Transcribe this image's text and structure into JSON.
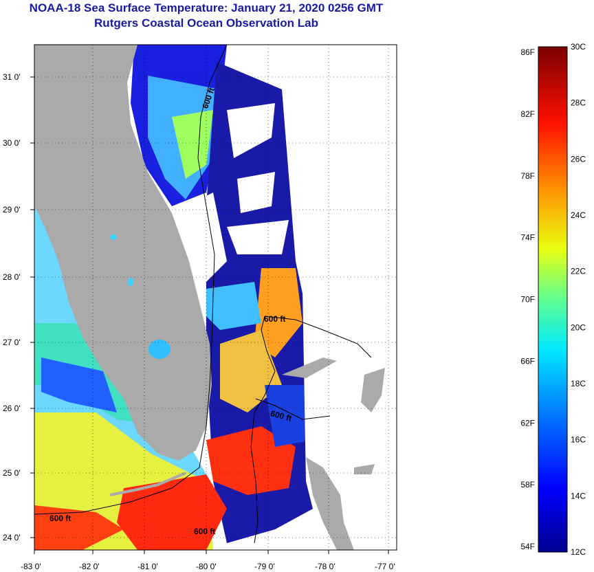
{
  "header": {
    "title_line1": "NOAA-18 Sea Surface Temperature:  January 21, 2020 0256 GMT",
    "title_line2": "Rutgers Coastal Ocean Observation Lab"
  },
  "map": {
    "lon_ticks": [
      "-83 0'",
      "-82 0'",
      "-81 0'",
      "-80 0'",
      "-79 0'",
      "-78 0'",
      "-77 0'"
    ],
    "lat_ticks": [
      "31 0'",
      "30 0'",
      "29 0'",
      "28 0'",
      "27 0'",
      "26 0'",
      "25 0'",
      "24 0'"
    ],
    "contour_labels": [
      "600 ft",
      "600 ft",
      "600 ft",
      "600 ft",
      "600 ft"
    ],
    "colors": {
      "land": "#aaaaaa",
      "cloud": "#ffffff",
      "contour": "#000000"
    }
  },
  "colorbar": {
    "fahrenheit_labels": [
      "86F",
      "82F",
      "78F",
      "74F",
      "70F",
      "66F",
      "62F",
      "58F",
      "54F"
    ],
    "celsius_labels": [
      "30C",
      "28C",
      "26C",
      "24C",
      "22C",
      "20C",
      "18C",
      "16C",
      "14C",
      "12C"
    ],
    "range_c": [
      12,
      30
    ],
    "colors": [
      "#00008f",
      "#0000ff",
      "#0080ff",
      "#00ffff",
      "#80ff80",
      "#ffff00",
      "#ff8000",
      "#ff0000",
      "#800000"
    ]
  }
}
